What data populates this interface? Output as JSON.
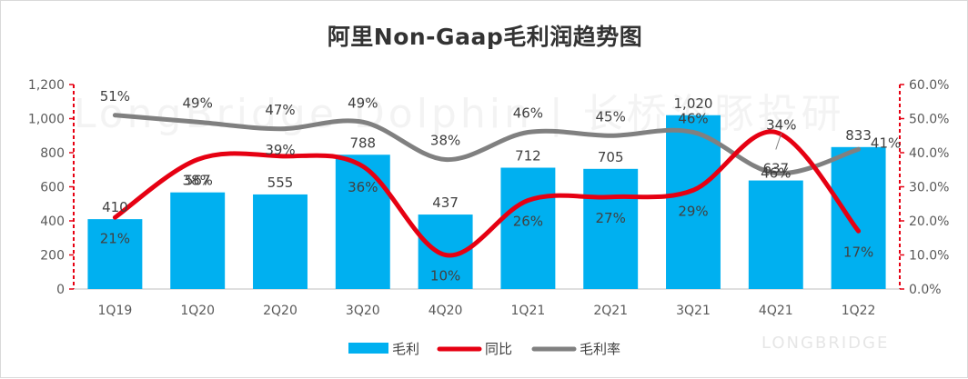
{
  "watermark": {
    "text": "LongBridge Dolphin | 长桥海豚投研",
    "logo_text": "LONGBRIDGE"
  },
  "chart_data": {
    "type": "bar",
    "title": "阿里Non-Gaap毛利润趋势图",
    "categories": [
      "1Q19",
      "1Q20",
      "2Q20",
      "3Q20",
      "4Q20",
      "1Q21",
      "2Q21",
      "3Q21",
      "4Q21",
      "1Q22"
    ],
    "left_axis": {
      "ylim": [
        0,
        1200
      ],
      "ticks": [
        "0",
        "200",
        "400",
        "600",
        "800",
        "1,000",
        "1,200"
      ]
    },
    "right_axis": {
      "ylim": [
        0,
        0.6
      ],
      "ticks": [
        "0.0%",
        "10.0%",
        "20.0%",
        "30.0%",
        "40.0%",
        "50.0%",
        "60.0%"
      ]
    },
    "series": [
      {
        "name": "毛利",
        "type": "bar",
        "axis": "left",
        "color": "#00B0F0",
        "values": [
          410,
          567,
          555,
          788,
          437,
          712,
          705,
          1020,
          637,
          833
        ],
        "labels": [
          "410",
          "567",
          "555",
          "788",
          "437",
          "712",
          "705",
          "1,020",
          "637",
          "833"
        ]
      },
      {
        "name": "同比",
        "type": "line",
        "axis": "right",
        "color": "#E60012",
        "values": [
          0.21,
          0.38,
          0.39,
          0.36,
          0.1,
          0.26,
          0.27,
          0.29,
          0.46,
          0.17
        ],
        "labels": [
          "21%",
          "38%",
          "39%",
          "36%",
          "10%",
          "26%",
          "27%",
          "29%",
          "46%",
          "17%"
        ]
      },
      {
        "name": "毛利率",
        "type": "line",
        "axis": "right",
        "color": "#808080",
        "values": [
          0.51,
          0.49,
          0.47,
          0.49,
          0.38,
          0.46,
          0.45,
          0.46,
          0.34,
          0.41
        ],
        "labels": [
          "51%",
          "49%",
          "47%",
          "49%",
          "38%",
          "46%",
          "45%",
          "46%",
          "34%",
          "41%"
        ]
      }
    ],
    "legend_position": "bottom",
    "grid": false
  }
}
